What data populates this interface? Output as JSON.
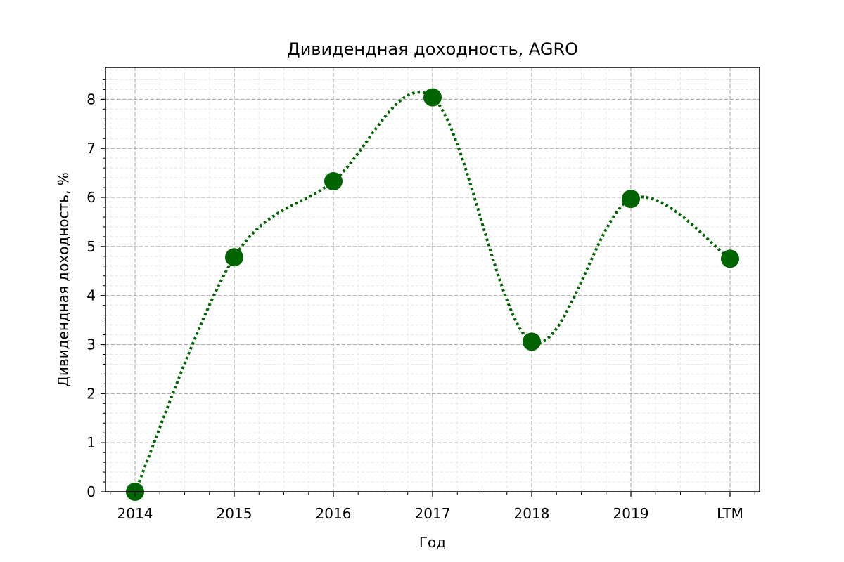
{
  "chart_data": {
    "type": "line",
    "title": "Дивидендная доходность, AGRO",
    "xlabel": "Год",
    "ylabel": "Дивидендная доходность, %",
    "categories": [
      "2014",
      "2015",
      "2016",
      "2017",
      "2018",
      "2019",
      "LTM"
    ],
    "series": [
      {
        "values": [
          0.0,
          4.78,
          6.33,
          8.04,
          3.06,
          5.97,
          4.75
        ]
      }
    ],
    "ylim": [
      0,
      8.65
    ],
    "yticks": [
      0,
      1,
      2,
      3,
      4,
      5,
      6,
      7,
      8
    ],
    "grid": true,
    "line_style": "dotted, smoothed",
    "colors": {
      "series": "#006400",
      "grid_major": "#b0b0b0",
      "grid_minor": "#e8e8e8"
    }
  }
}
